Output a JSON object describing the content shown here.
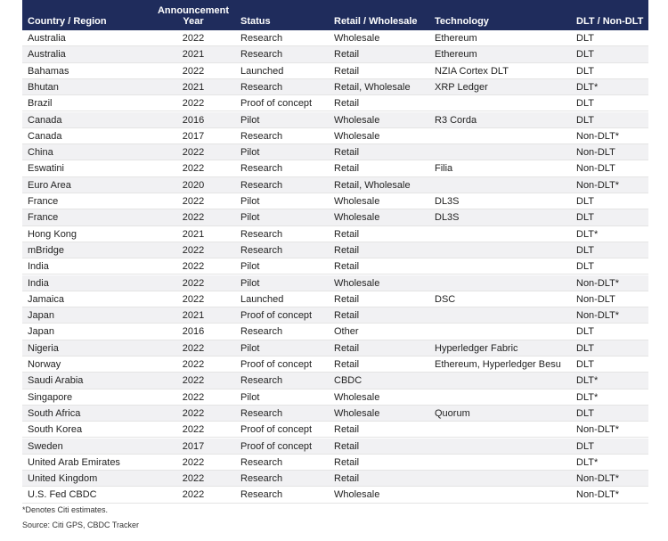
{
  "table": {
    "header": [
      "Country / Region",
      "Announcement Year",
      "Status",
      "Retail / Wholesale",
      "Technology",
      "DLT / Non-DLT"
    ],
    "rows": [
      [
        "Australia",
        2022,
        "Research",
        "Wholesale",
        "Ethereum",
        "DLT"
      ],
      [
        "Australia",
        2021,
        "Research",
        "Retail",
        "Ethereum",
        "DLT"
      ],
      [
        "Bahamas",
        2022,
        "Launched",
        "Retail",
        "NZIA Cortex DLT",
        "DLT"
      ],
      [
        "Bhutan",
        2021,
        "Research",
        "Retail, Wholesale",
        "XRP Ledger",
        "DLT*"
      ],
      [
        "Brazil",
        2022,
        "Proof of concept",
        "Retail",
        null,
        "DLT"
      ],
      [
        "Canada",
        2016,
        "Pilot",
        "Wholesale",
        "R3 Corda",
        "DLT"
      ],
      [
        "Canada",
        2017,
        "Research",
        "Wholesale",
        null,
        "Non-DLT*"
      ],
      [
        "China",
        2022,
        "Pilot",
        "Retail",
        null,
        "Non-DLT"
      ],
      [
        "Eswatini",
        2022,
        "Research",
        "Retail",
        "Filia",
        "Non-DLT"
      ],
      [
        "Euro Area",
        2020,
        "Research",
        "Retail, Wholesale",
        null,
        "Non-DLT*"
      ],
      [
        "France",
        2022,
        "Pilot",
        "Wholesale",
        "DL3S",
        "DLT"
      ],
      [
        "France",
        2022,
        "Pilot",
        "Wholesale",
        "DL3S",
        "DLT"
      ],
      [
        "Hong Kong",
        2021,
        "Research",
        "Retail",
        null,
        "DLT*"
      ],
      [
        "mBridge",
        2022,
        "Research",
        "Retail",
        null,
        "DLT"
      ],
      [
        "India",
        2022,
        "Pilot",
        "Retail",
        null,
        "DLT"
      ],
      [
        "India",
        2022,
        "Pilot",
        "Wholesale",
        null,
        "Non-DLT*"
      ],
      [
        "Jamaica",
        2022,
        "Launched",
        "Retail",
        "DSC",
        "Non-DLT"
      ],
      [
        "Japan",
        2021,
        "Proof of concept",
        "Retail",
        null,
        "Non-DLT*"
      ],
      [
        "Japan",
        2016,
        "Research",
        "Other",
        null,
        "DLT"
      ],
      [
        "Nigeria",
        2022,
        "Pilot",
        "Retail",
        "Hyperledger Fabric",
        "DLT"
      ],
      [
        "Norway",
        2022,
        "Proof of concept",
        "Retail",
        "Ethereum, Hyperledger Besu",
        "DLT"
      ],
      [
        "Saudi Arabia",
        2022,
        "Research",
        "CBDC",
        null,
        "DLT*"
      ],
      [
        "Singapore",
        2022,
        "Pilot",
        "Wholesale",
        null,
        "DLT*"
      ],
      [
        "South Africa",
        2022,
        "Research",
        "Wholesale",
        "Quorum",
        "DLT"
      ],
      [
        "South Korea",
        2022,
        "Proof of concept",
        "Retail",
        null,
        "Non-DLT*"
      ],
      [
        "Sweden",
        2017,
        "Proof of concept",
        "Retail",
        null,
        "DLT"
      ],
      [
        "United Arab Emirates",
        2022,
        "Research",
        "Retail",
        null,
        "DLT*"
      ],
      [
        "United Kingdom",
        2022,
        "Research",
        "Retail",
        null,
        "Non-DLT*"
      ],
      [
        "U.S. Fed CBDC",
        2022,
        "Research",
        "Wholesale",
        null,
        "Non-DLT*"
      ]
    ]
  },
  "notes": [
    "*Denotes Citi estimates.",
    "Source: Citi GPS, CBDC Tracker"
  ]
}
